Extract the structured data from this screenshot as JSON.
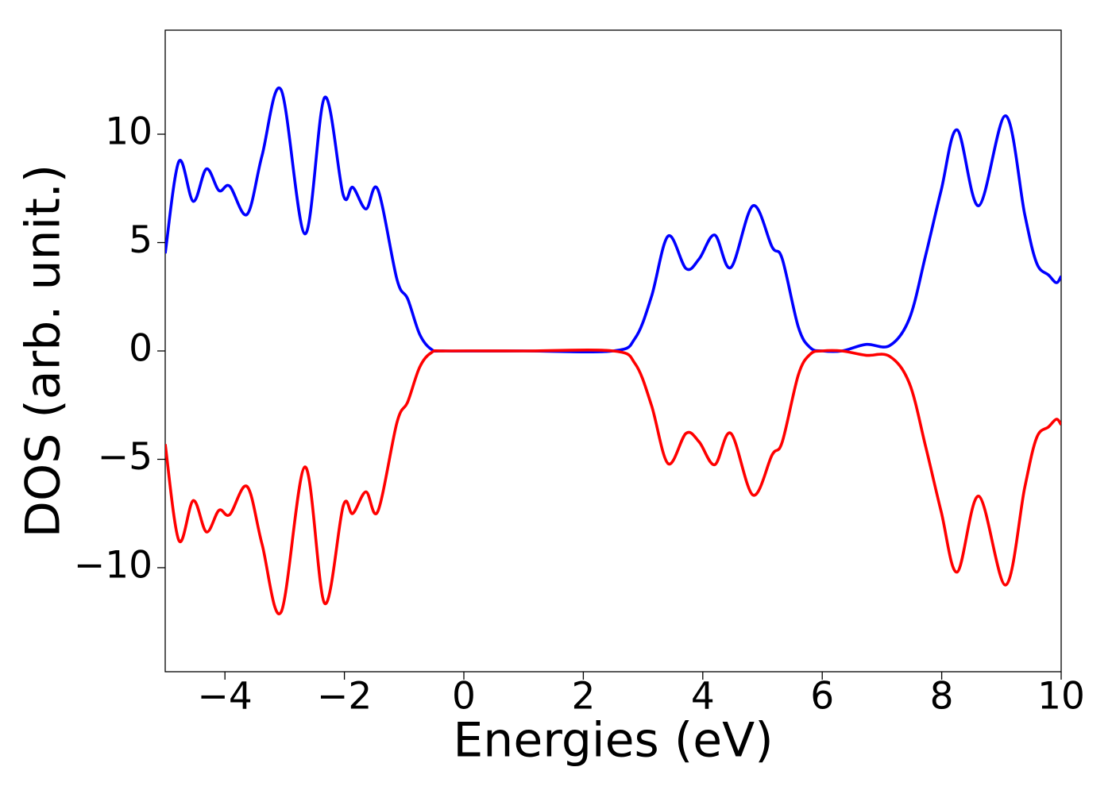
{
  "chart_data": {
    "type": "line",
    "xlabel": "Energies (eV)",
    "ylabel": "DOS (arb. unit.)",
    "x": [
      -5,
      -4.77,
      -4.53,
      -4.31,
      -4.1,
      -3.92,
      -3.63,
      -3.38,
      -3.06,
      -2.66,
      -2.33,
      -2.02,
      -1.86,
      -1.64,
      -1.44,
      -1.12,
      -0.94,
      -0.74,
      -0.54,
      -0.3,
      1,
      2.5,
      2.87,
      3.14,
      3.42,
      3.72,
      3.94,
      4.2,
      4.47,
      4.84,
      5.16,
      5.33,
      5.6,
      5.8,
      6.0,
      6.33,
      6.73,
      7.13,
      7.46,
      7.73,
      7.99,
      8.26,
      8.62,
      9.07,
      9.39,
      9.59,
      9.79,
      9.92,
      10
    ],
    "series": [
      {
        "color": "#0000ff",
        "values": [
          4.5,
          8.75,
          6.9,
          8.4,
          7.4,
          7.6,
          6.3,
          9.0,
          12.05,
          5.4,
          11.7,
          7.2,
          7.55,
          6.55,
          7.45,
          3.3,
          2.4,
          0.77,
          0.07,
          0,
          0,
          0,
          0.6,
          2.5,
          5.3,
          3.8,
          4.25,
          5.35,
          3.85,
          6.7,
          4.8,
          4.25,
          1.1,
          0.15,
          0,
          0,
          0.3,
          0.25,
          1.5,
          4.4,
          7.4,
          10.2,
          6.7,
          10.85,
          6.3,
          4.05,
          3.5,
          3.15,
          3.45
        ]
      },
      {
        "color": "#ff0000",
        "values": [
          -4.3,
          -8.75,
          -6.9,
          -8.35,
          -7.35,
          -7.55,
          -6.25,
          -8.9,
          -12.05,
          -5.35,
          -11.65,
          -7.15,
          -7.5,
          -6.5,
          -7.4,
          -3.3,
          -2.35,
          -0.75,
          -0.07,
          0,
          0,
          0,
          -0.6,
          -2.5,
          -5.2,
          -3.8,
          -4.2,
          -5.25,
          -3.8,
          -6.65,
          -4.8,
          -4.2,
          -1.1,
          -0.15,
          0,
          0,
          -0.2,
          -0.25,
          -1.5,
          -4.4,
          -7.4,
          -10.2,
          -6.7,
          -10.8,
          -6.3,
          -4.0,
          -3.5,
          -3.15,
          -3.4
        ]
      }
    ],
    "xlim": [
      -5,
      10
    ],
    "xticks": [
      {
        "value": -4,
        "label": "−4"
      },
      {
        "value": -2,
        "label": "−2"
      },
      0,
      2,
      4,
      6,
      8,
      10
    ],
    "ylim": [
      -14.8,
      14.8
    ],
    "yticks": [
      {
        "value": -10,
        "label": "−10"
      },
      {
        "value": -5,
        "label": "−5"
      },
      0,
      5,
      10
    ],
    "grid": false
  }
}
